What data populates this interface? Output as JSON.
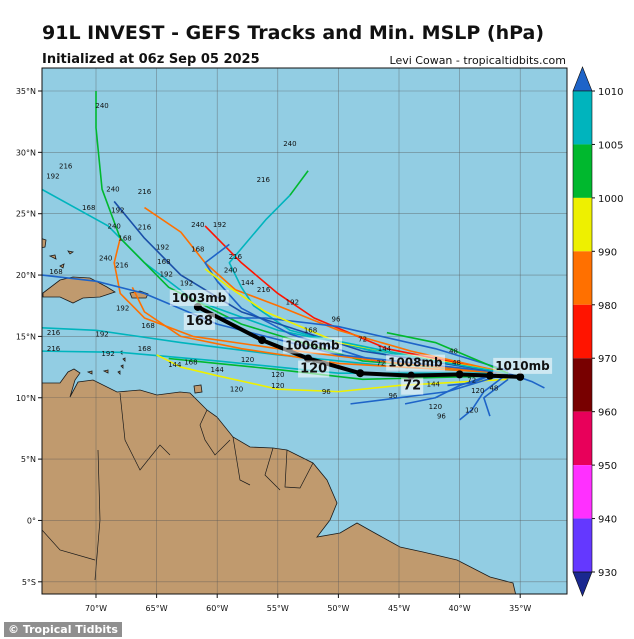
{
  "header": {
    "title": "91L INVEST - GEFS Tracks and Min. MSLP (hPa)",
    "subtitle": "Initialized at 06z Sep 05 2025",
    "credit": "Levi Cowan - tropicaltidbits.com"
  },
  "watermark": "© Tropical Tidbits",
  "chart_data": {
    "type": "map-tracks",
    "title": "91L INVEST - GEFS Tracks and Min. MSLP (hPa)",
    "lon_range": [
      -74.5,
      -31
    ],
    "lat_range": [
      -6,
      37
    ],
    "grid": true,
    "lat_ticks": [
      {
        "v": 35,
        "label": "35°N"
      },
      {
        "v": 30,
        "label": "30°N"
      },
      {
        "v": 25,
        "label": "25°N"
      },
      {
        "v": 20,
        "label": "20°N"
      },
      {
        "v": 15,
        "label": "15°N"
      },
      {
        "v": 10,
        "label": "10°N"
      },
      {
        "v": 5,
        "label": "5°N"
      },
      {
        "v": 0,
        "label": "0°"
      },
      {
        "v": -5,
        "label": "5°S"
      }
    ],
    "lon_ticks": [
      {
        "v": -70,
        "label": "70°W"
      },
      {
        "v": -65,
        "label": "65°W"
      },
      {
        "v": -60,
        "label": "60°W"
      },
      {
        "v": -55,
        "label": "55°W"
      },
      {
        "v": -50,
        "label": "50°W"
      },
      {
        "v": -45,
        "label": "45°W"
      },
      {
        "v": -40,
        "label": "40°W"
      },
      {
        "v": -35,
        "label": "35°W"
      }
    ],
    "colors": {
      "ocean": "#92cde3",
      "land": "#c09a6e",
      "mean_track": "#000000"
    },
    "colorbar": {
      "levels": [
        1010,
        1005,
        1000,
        990,
        980,
        970,
        960,
        950,
        940,
        930
      ],
      "bands": [
        "#00b4bd",
        "#00b82e",
        "#eef000",
        "#ff7000",
        "#ff1400",
        "#780000",
        "#e8005a",
        "#ff30ff",
        "#6438ff"
      ],
      "over": "#1e64c8",
      "under": "#1a2890"
    },
    "mean_track": {
      "points": [
        {
          "hour": 0,
          "lon": -35,
          "lat": 11.7,
          "label": "1010mb"
        },
        {
          "hour": 24,
          "lon": -37.5,
          "lat": 11.8
        },
        {
          "hour": 48,
          "lon": -40,
          "lat": 11.9
        },
        {
          "hour": 72,
          "lon": -44,
          "lat": 11.8,
          "label": "1008mb",
          "hour_label": "72"
        },
        {
          "hour": 96,
          "lon": -48.2,
          "lat": 12.0
        },
        {
          "hour": 120,
          "lon": -52.5,
          "lat": 13.2,
          "label": "1006mb",
          "hour_label": "120"
        },
        {
          "hour": 144,
          "lon": -56.3,
          "lat": 14.7
        },
        {
          "hour": 168,
          "lon": -61.6,
          "lat": 17.4,
          "label": "1003mb",
          "hour_label": "168"
        }
      ]
    },
    "members": [
      {
        "color": "#00b4bd",
        "points": [
          [
            -36,
            12
          ],
          [
            -45,
            13.5
          ],
          [
            -55,
            15.5
          ],
          [
            -62,
            18
          ],
          [
            -66,
            21
          ],
          [
            -69,
            24
          ],
          [
            -74.5,
            27
          ]
        ]
      },
      {
        "color": "#00b82e",
        "points": [
          [
            -36,
            12
          ],
          [
            -48,
            13
          ],
          [
            -58,
            16
          ],
          [
            -64,
            19
          ],
          [
            -68,
            23
          ],
          [
            -69.5,
            27
          ],
          [
            -70,
            32
          ],
          [
            -70,
            35
          ]
        ]
      },
      {
        "color": "#ff1400",
        "points": [
          [
            -36,
            12
          ],
          [
            -46,
            14
          ],
          [
            -52,
            16.5
          ],
          [
            -55,
            18.5
          ],
          [
            -58,
            21
          ],
          [
            -61,
            24
          ]
        ]
      },
      {
        "color": "#ff7000",
        "points": [
          [
            -36,
            12
          ],
          [
            -44,
            13.8
          ],
          [
            -50,
            15.5
          ],
          [
            -55,
            17.5
          ],
          [
            -58.5,
            18.8
          ],
          [
            -61,
            21
          ],
          [
            -63,
            23.5
          ],
          [
            -66,
            25.5
          ]
        ]
      },
      {
        "color": "#00b4bd",
        "points": [
          [
            -36,
            12
          ],
          [
            -46,
            13.5
          ],
          [
            -54,
            15.5
          ],
          [
            -57,
            17.5
          ],
          [
            -58,
            19
          ],
          [
            -59,
            21
          ],
          [
            -56,
            24.5
          ],
          [
            -54,
            26.5
          ]
        ]
      },
      {
        "color": "#00b82e",
        "points": [
          [
            -54,
            26.5
          ],
          [
            -52.5,
            28.5
          ]
        ]
      },
      {
        "color": "#1e64c8",
        "points": [
          [
            -36,
            12
          ],
          [
            -47,
            13
          ],
          [
            -54,
            15.2
          ],
          [
            -58,
            17.3
          ],
          [
            -60,
            19.5
          ],
          [
            -61,
            21
          ],
          [
            -59,
            22.5
          ]
        ]
      },
      {
        "color": "#ff7000",
        "points": [
          [
            -36,
            12
          ],
          [
            -45,
            12.8
          ],
          [
            -55,
            14
          ],
          [
            -62,
            15
          ],
          [
            -66,
            16.5
          ],
          [
            -68,
            18.5
          ],
          [
            -68.5,
            21
          ],
          [
            -68,
            23
          ]
        ]
      },
      {
        "color": "#00b4bd",
        "points": [
          [
            -36,
            12
          ],
          [
            -45,
            12.5
          ],
          [
            -55,
            13.5
          ],
          [
            -63,
            14.5
          ],
          [
            -70,
            15.5
          ],
          [
            -74.5,
            15.7
          ]
        ]
      },
      {
        "color": "#00b4bd",
        "points": [
          [
            -36,
            12
          ],
          [
            -50,
            12
          ],
          [
            -60,
            13
          ],
          [
            -68,
            13.7
          ],
          [
            -74.5,
            13.8
          ]
        ]
      },
      {
        "color": "#eef000",
        "points": [
          [
            -36,
            11.5
          ],
          [
            -45,
            11
          ],
          [
            -50,
            10.5
          ],
          [
            -55,
            10.7
          ],
          [
            -60,
            11.8
          ],
          [
            -63,
            12.5
          ],
          [
            -65,
            13.5
          ]
        ]
      },
      {
        "color": "#00b82e",
        "points": [
          [
            -36,
            11.8
          ],
          [
            -48,
            11.5
          ],
          [
            -55,
            12.3
          ],
          [
            -60,
            12.8
          ],
          [
            -64,
            13.2
          ]
        ]
      },
      {
        "color": "#ff7000",
        "points": [
          [
            -36,
            12
          ],
          [
            -50,
            12.8
          ],
          [
            -58,
            14
          ],
          [
            -63,
            15
          ],
          [
            -66,
            17
          ],
          [
            -67,
            19
          ]
        ]
      },
      {
        "color": "#1e64c8",
        "points": [
          [
            -36,
            12
          ],
          [
            -50,
            13.5
          ],
          [
            -60,
            16
          ],
          [
            -66,
            18.5
          ],
          [
            -70,
            19.5
          ],
          [
            -74.5,
            20
          ]
        ]
      },
      {
        "color": "#1e64c8",
        "points": [
          [
            -36,
            12
          ],
          [
            -34,
            11.3
          ],
          [
            -33,
            10.8
          ]
        ]
      },
      {
        "color": "#1e64c8",
        "points": [
          [
            -36,
            12
          ],
          [
            -38,
            10.5
          ],
          [
            -39,
            9
          ],
          [
            -40,
            8.2
          ]
        ]
      },
      {
        "color": "#1e64c8",
        "points": [
          [
            -37,
            12
          ],
          [
            -40,
            11
          ],
          [
            -42,
            10
          ],
          [
            -44.5,
            9.5
          ]
        ]
      },
      {
        "color": "#1e64c8",
        "points": [
          [
            -36,
            11.5
          ],
          [
            -38,
            10
          ],
          [
            -37.5,
            8.5
          ]
        ]
      },
      {
        "color": "#1e64c8",
        "points": [
          [
            -37,
            12
          ],
          [
            -39,
            11.2
          ],
          [
            -41,
            11
          ]
        ]
      },
      {
        "color": "#1e64c8",
        "points": [
          [
            -36,
            12
          ],
          [
            -41,
            10.5
          ],
          [
            -45,
            10
          ],
          [
            -49,
            9.5
          ]
        ]
      },
      {
        "color": "#1e64c8",
        "points": [
          [
            -36,
            12.2
          ],
          [
            -42,
            14
          ],
          [
            -50,
            15.8
          ],
          [
            -56,
            16.5
          ],
          [
            -60,
            16.5
          ]
        ]
      },
      {
        "color": "#1a4fa8",
        "points": [
          [
            -36,
            12
          ],
          [
            -48,
            13.8
          ],
          [
            -58,
            17
          ],
          [
            -63,
            20
          ],
          [
            -66,
            23
          ],
          [
            -68.5,
            26
          ]
        ]
      },
      {
        "color": "#eef000",
        "points": [
          [
            -36,
            12
          ],
          [
            -50,
            14.5
          ],
          [
            -56,
            17
          ],
          [
            -59,
            19
          ],
          [
            -61,
            20.5
          ]
        ]
      },
      {
        "color": "#00b4bd",
        "points": [
          [
            -36,
            12
          ],
          [
            -42,
            13
          ],
          [
            -48,
            14.2
          ],
          [
            -52,
            15
          ]
        ]
      },
      {
        "color": "#00b82e",
        "points": [
          [
            -36,
            12
          ],
          [
            -42,
            14.5
          ],
          [
            -46,
            15.3
          ]
        ]
      }
    ],
    "hour_labels": [
      {
        "t": "240",
        "lon": -69.5,
        "lat": 33.6
      },
      {
        "t": "216",
        "lon": -72.5,
        "lat": 28.7
      },
      {
        "t": "192",
        "lon": -74.3,
        "lat": 28.2
      },
      {
        "t": "240",
        "lon": -68.6,
        "lat": 26.8
      },
      {
        "t": "216",
        "lon": -66,
        "lat": 26.6
      },
      {
        "t": "168",
        "lon": -70.6,
        "lat": 25.3
      },
      {
        "t": "192",
        "lon": -68.2,
        "lat": 25.1
      },
      {
        "t": "240",
        "lon": -68.5,
        "lat": 23.8
      },
      {
        "t": "216",
        "lon": -66,
        "lat": 23.7
      },
      {
        "t": "168",
        "lon": -67.6,
        "lat": 22.8
      },
      {
        "t": "192",
        "lon": -64.5,
        "lat": 22.1
      },
      {
        "t": "240",
        "lon": -69.2,
        "lat": 21.2
      },
      {
        "t": "216",
        "lon": -68.2,
        "lat": 20.6
      },
      {
        "t": "168",
        "lon": -73.3,
        "lat": 20.1
      },
      {
        "t": "192",
        "lon": -64.2,
        "lat": 19.9
      },
      {
        "t": "168",
        "lon": -64.4,
        "lat": 20.9
      },
      {
        "t": "240",
        "lon": -61.6,
        "lat": 23.9
      },
      {
        "t": "192",
        "lon": -59.8,
        "lat": 23.9
      },
      {
        "t": "168",
        "lon": -61.6,
        "lat": 21.9
      },
      {
        "t": "216",
        "lon": -58.5,
        "lat": 21.3
      },
      {
        "t": "240",
        "lon": -58.9,
        "lat": 20.2
      },
      {
        "t": "144",
        "lon": -57.5,
        "lat": 19.2
      },
      {
        "t": "216",
        "lon": -56.5,
        "lat": 18.6
      },
      {
        "t": "192",
        "lon": -53.8,
        "lat": 17.6
      },
      {
        "t": "240",
        "lon": -54,
        "lat": 30.5
      },
      {
        "t": "216",
        "lon": -56.2,
        "lat": 27.6
      },
      {
        "t": "192",
        "lon": -62.2,
        "lat": 18.4
      },
      {
        "t": "192",
        "lon": -67.8,
        "lat": 17.1
      },
      {
        "t": "216",
        "lon": -73.5,
        "lat": 15.1
      },
      {
        "t": "192",
        "lon": -69.5,
        "lat": 15
      },
      {
        "t": "216",
        "lon": -73.5,
        "lat": 13.8
      },
      {
        "t": "192",
        "lon": -69,
        "lat": 13.4
      },
      {
        "t": "168",
        "lon": -65.7,
        "lat": 15.7
      },
      {
        "t": "168",
        "lon": -66,
        "lat": 13.8
      },
      {
        "t": "144",
        "lon": -63.5,
        "lat": 12.5
      },
      {
        "t": "168",
        "lon": -62.5,
        "lat": 12.7
      },
      {
        "t": "144",
        "lon": -60,
        "lat": 12.1
      },
      {
        "t": "120",
        "lon": -57.5,
        "lat": 12.9
      },
      {
        "t": "120",
        "lon": -58.4,
        "lat": 10.5
      },
      {
        "t": "120",
        "lon": -55,
        "lat": 11.7
      },
      {
        "t": "120",
        "lon": -55,
        "lat": 10.8
      },
      {
        "t": "96",
        "lon": -51,
        "lat": 10.3
      },
      {
        "t": "96",
        "lon": -50.2,
        "lat": 16.2
      },
      {
        "t": "168",
        "lon": -52.3,
        "lat": 15.3
      },
      {
        "t": "72",
        "lon": -48,
        "lat": 14.6
      },
      {
        "t": "144",
        "lon": -46.2,
        "lat": 13.8
      },
      {
        "t": "72",
        "lon": -45.5,
        "lat": 13.1
      },
      {
        "t": "48",
        "lon": -40.5,
        "lat": 13.6
      },
      {
        "t": "48",
        "lon": -40.5,
        "lat": 12.9
      },
      {
        "t": "96",
        "lon": -45.5,
        "lat": 10
      },
      {
        "t": "96",
        "lon": -41.5,
        "lat": 8.3
      },
      {
        "t": "120",
        "lon": -42,
        "lat": 9.1
      },
      {
        "t": "120",
        "lon": -38.5,
        "lat": 10.4
      },
      {
        "t": "48",
        "lon": -37.5,
        "lat": 10.6
      },
      {
        "t": "144",
        "lon": -42.5,
        "lat": 10.9
      },
      {
        "t": "72",
        "lon": -39,
        "lat": 10.9
      },
      {
        "t": "120",
        "lon": -39,
        "lat": 8.8
      }
    ]
  }
}
